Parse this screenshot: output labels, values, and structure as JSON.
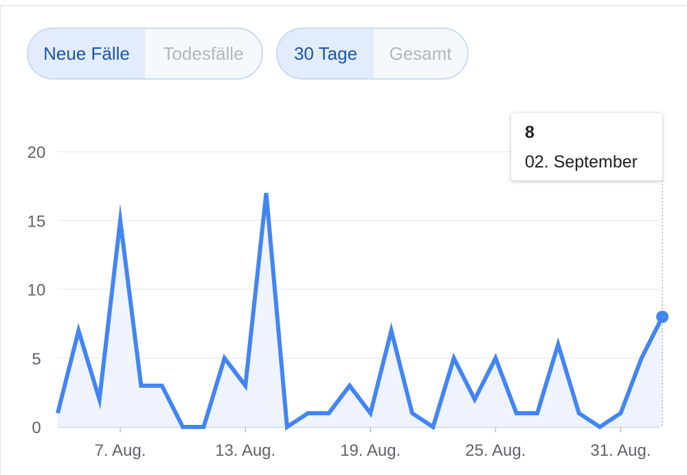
{
  "toggles": {
    "metric": [
      {
        "label": "Neue Fälle",
        "active": true
      },
      {
        "label": "Todesfälle",
        "active": false
      }
    ],
    "range": [
      {
        "label": "30 Tage",
        "active": true
      },
      {
        "label": "Gesamt",
        "active": false
      }
    ]
  },
  "tooltip": {
    "value": "8",
    "date": "02. September"
  },
  "chart_data": {
    "type": "area",
    "x": [
      "2020-08-04",
      "2020-08-05",
      "2020-08-06",
      "2020-08-07",
      "2020-08-08",
      "2020-08-09",
      "2020-08-10",
      "2020-08-11",
      "2020-08-12",
      "2020-08-13",
      "2020-08-14",
      "2020-08-15",
      "2020-08-16",
      "2020-08-17",
      "2020-08-18",
      "2020-08-19",
      "2020-08-20",
      "2020-08-21",
      "2020-08-22",
      "2020-08-23",
      "2020-08-24",
      "2020-08-25",
      "2020-08-26",
      "2020-08-27",
      "2020-08-28",
      "2020-08-29",
      "2020-08-30",
      "2020-08-31",
      "2020-09-01",
      "2020-09-02"
    ],
    "values": [
      1,
      7,
      2,
      15,
      3,
      3,
      0,
      0,
      5,
      3,
      17,
      0,
      1,
      1,
      3,
      1,
      7,
      1,
      0,
      5,
      2,
      5,
      1,
      1,
      6,
      1,
      0,
      1,
      5,
      8
    ],
    "xticks": [
      "7. Aug.",
      "13. Aug.",
      "19. Aug.",
      "25. Aug.",
      "31. Aug."
    ],
    "yticks": [
      "0",
      "5",
      "10",
      "15",
      "20"
    ],
    "ylim": [
      0,
      20
    ],
    "grid": true,
    "line_color": "#4285f4",
    "fill_color": "#eef3fd",
    "highlight_index": 29
  }
}
